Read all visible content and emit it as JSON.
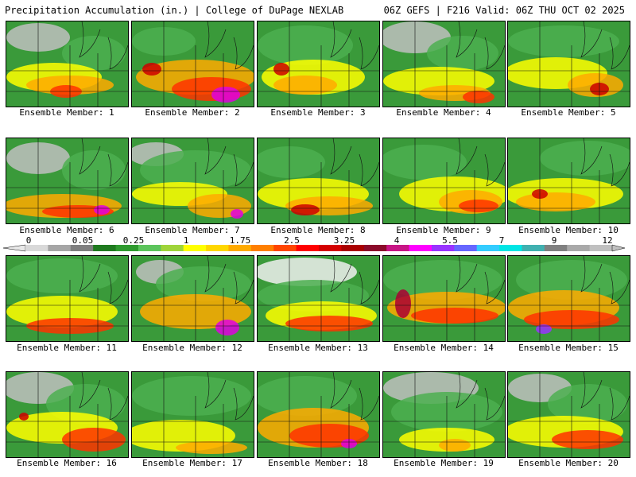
{
  "header": {
    "left_title": "Precipitation Accumulation (in.) | College of DuPage NEXLAB",
    "right_title": "06Z GEFS | F216 Valid: 06Z THU OCT 02 2025"
  },
  "legend": {
    "labels": [
      "0",
      "0.05",
      "0.25",
      "1",
      "1.75",
      "2.5",
      "3.25",
      "4",
      "5.5",
      "7",
      "9",
      "12"
    ],
    "colors": [
      "#d9d9d9",
      "#a6a6a6",
      "#7f7f7f",
      "#1f7a1f",
      "#2f9a2f",
      "#5cc45c",
      "#9fd43a",
      "#ffff00",
      "#ffd700",
      "#ffaa00",
      "#ff7f00",
      "#ff4500",
      "#ff0000",
      "#d40000",
      "#aa0000",
      "#8b0a2a",
      "#c71585",
      "#ff00ff",
      "#9933ff",
      "#6666ff",
      "#33ccff",
      "#00e5e5",
      "#40b0b0",
      "#808080",
      "#a9a9a9",
      "#c0c0c0"
    ]
  },
  "members": [
    {
      "label": "Ensemble Member: 1"
    },
    {
      "label": "Ensemble Member: 2"
    },
    {
      "label": "Ensemble Member: 3"
    },
    {
      "label": "Ensemble Member: 4"
    },
    {
      "label": "Ensemble Member: 5"
    },
    {
      "label": "Ensemble Member: 6"
    },
    {
      "label": "Ensemble Member: 7"
    },
    {
      "label": "Ensemble Member: 8"
    },
    {
      "label": "Ensemble Member: 9"
    },
    {
      "label": "Ensemble Member: 10"
    },
    {
      "label": "Ensemble Member: 11"
    },
    {
      "label": "Ensemble Member: 12"
    },
    {
      "label": "Ensemble Member: 13"
    },
    {
      "label": "Ensemble Member: 14"
    },
    {
      "label": "Ensemble Member: 15"
    },
    {
      "label": "Ensemble Member: 16"
    },
    {
      "label": "Ensemble Member: 17"
    },
    {
      "label": "Ensemble Member: 18"
    },
    {
      "label": "Ensemble Member: 19"
    },
    {
      "label": "Ensemble Member: 20"
    }
  ]
}
